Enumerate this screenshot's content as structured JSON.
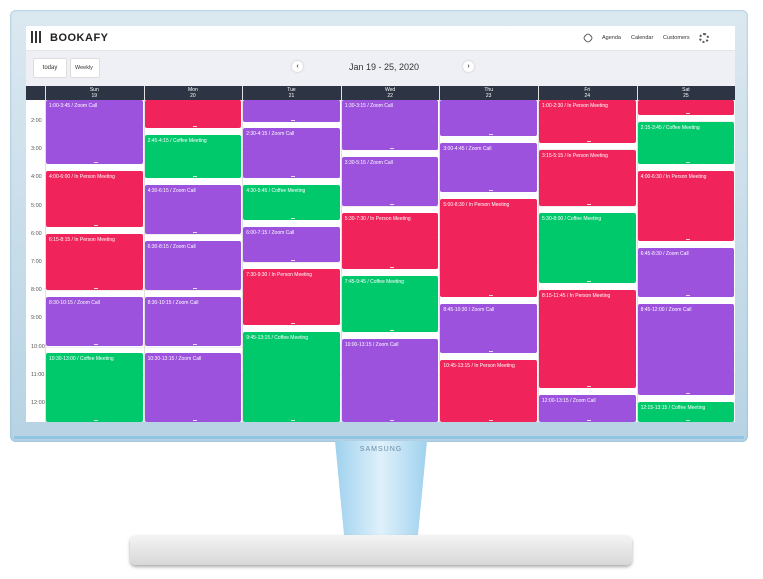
{
  "header": {
    "brand": "BOOKAFY",
    "nav": [
      "Agenda",
      "Calendar",
      "Customers"
    ]
  },
  "toolbar": {
    "today": "today",
    "view": "Weekly",
    "range": "Jan 19 - 25, 2020"
  },
  "times": [
    "2:00",
    "3:00",
    "4:00",
    "5:00",
    "6:00",
    "7:00",
    "8:00",
    "9:00",
    "10:00",
    "11:00",
    "12:00"
  ],
  "colors": {
    "zoom": "#9d52de",
    "person": "#f0245a",
    "coffee": "#00c96c"
  },
  "days": [
    {
      "name": "Sun",
      "date": "19",
      "events": [
        {
          "label": "1:00-3:45 / Zoom Call",
          "kind": "zoom"
        },
        {
          "label": "4:00-6:00 / In Person Meeting",
          "kind": "person"
        },
        {
          "label": "6:15-8:15 / In Person Meeting",
          "kind": "person"
        },
        {
          "label": "8:30-10:15 / Zoom Call",
          "kind": "zoom"
        },
        {
          "label": "10:30-13:00 / Coffee Meeting",
          "kind": "coffee"
        }
      ]
    },
    {
      "name": "Mon",
      "date": "20",
      "events": [
        {
          "kind": "person"
        },
        {
          "label": "2:45-4:15 / Coffee Meeting",
          "kind": "coffee"
        },
        {
          "label": "4:30-6:15 / Zoom Call",
          "kind": "zoom"
        },
        {
          "label": "6:30-8:15 / Zoom Call",
          "kind": "zoom"
        },
        {
          "label": "8:30-10:15 / Zoom Call",
          "kind": "zoom"
        },
        {
          "label": "10:30-13:15 / Zoom Call",
          "kind": "zoom"
        }
      ]
    },
    {
      "name": "Tue",
      "date": "21",
      "events": [
        {
          "kind": "zoom"
        },
        {
          "label": "2:30-4:15 / Zoom Call",
          "kind": "zoom"
        },
        {
          "label": "4:30-5:45 / Coffee Meeting",
          "kind": "coffee"
        },
        {
          "label": "6:00-7:15 / Zoom Call",
          "kind": "zoom"
        },
        {
          "label": "7:30-9:30 / In Person Meeting",
          "kind": "person"
        },
        {
          "label": "9:45-13:15 / Coffee Meeting",
          "kind": "coffee"
        }
      ]
    },
    {
      "name": "Wed",
      "date": "22",
      "events": [
        {
          "label": "1:30-3:15 / Zoom Call",
          "kind": "zoom"
        },
        {
          "label": "3:30-5:15 / Zoom Call",
          "kind": "zoom"
        },
        {
          "label": "5:30-7:30 / In Person Meeting",
          "kind": "person"
        },
        {
          "label": "7:45-9:45 / Coffee Meeting",
          "kind": "coffee"
        },
        {
          "label": "10:00-13:15 / Zoom Call",
          "kind": "zoom"
        }
      ]
    },
    {
      "name": "Thu",
      "date": "23",
      "events": [
        {
          "kind": "zoom"
        },
        {
          "label": "3:00-4:45 / Zoom Call",
          "kind": "zoom"
        },
        {
          "label": "5:00-8:30 / In Person Meeting",
          "kind": "person"
        },
        {
          "label": "8:45-10:30 / Zoom Call",
          "kind": "zoom"
        },
        {
          "label": "10:45-13:15 / In Person Meeting",
          "kind": "person"
        }
      ]
    },
    {
      "name": "Fri",
      "date": "24",
      "events": [
        {
          "label": "1:00-2:30 / In Person Meeting",
          "kind": "person"
        },
        {
          "label": "3:15-5:15 / In Person Meeting",
          "kind": "person"
        },
        {
          "label": "5:30-8:00 / Coffee Meeting",
          "kind": "coffee"
        },
        {
          "label": "8:15-11:45 / In Person Meeting",
          "kind": "person"
        },
        {
          "label": "12:00-13:15 / Zoom Call",
          "kind": "zoom"
        }
      ]
    },
    {
      "name": "Sat",
      "date": "25",
      "events": [
        {
          "kind": "person"
        },
        {
          "label": "2:15-3:45 / Coffee Meeting",
          "kind": "coffee"
        },
        {
          "label": "4:00-6:30 / In Person Meeting",
          "kind": "person"
        },
        {
          "label": "6:45-8:30 / Zoom Call",
          "kind": "zoom"
        },
        {
          "label": "8:45-12:00 / Zoom Call",
          "kind": "zoom"
        },
        {
          "label": "12:15-13:15 / Coffee Meeting",
          "kind": "coffee"
        }
      ]
    }
  ],
  "monitor": {
    "brand": "SAMSUNG"
  }
}
